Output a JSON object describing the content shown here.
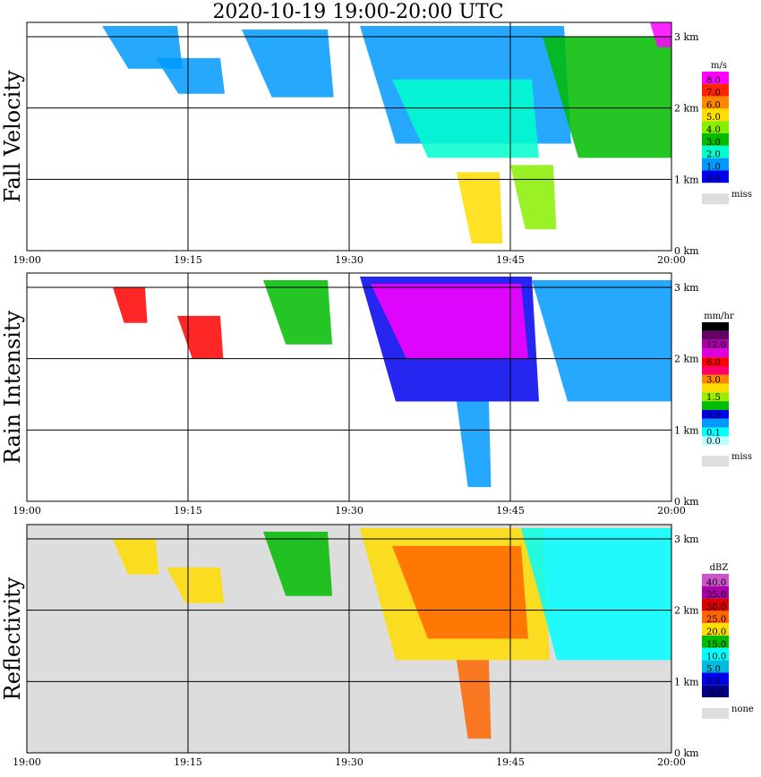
{
  "title": "2020-10-19   19:00-20:00 UTC",
  "chart_data": [
    {
      "type": "heatmap",
      "panel_label": "Fall Velocity",
      "x_ticks": [
        "19:00",
        "19:15",
        "19:30",
        "19:45",
        "20:00"
      ],
      "y_ticks": [
        "0 km",
        "1 km",
        "2 km",
        "3 km"
      ],
      "xlim": [
        "19:00",
        "20:00"
      ],
      "ylim": [
        0,
        3.2
      ],
      "grid": true,
      "legend_unit": "m/s",
      "legend_placement": "right",
      "legend_levels": [
        "8.0",
        "7.0",
        "6.0",
        "5.0",
        "4.0",
        "3.0",
        "2.0",
        "1.0",
        "0.0"
      ],
      "legend_colors": [
        "#ff00ff",
        "#ff2200",
        "#ff8800",
        "#ffdd00",
        "#88ee00",
        "#00bb00",
        "#00ffcc",
        "#0099ff",
        "#0000ee"
      ],
      "missing_label": "miss",
      "missing_color": "#dddddd",
      "background": "#ffffff",
      "features": [
        {
          "t0": 7,
          "t1": 14,
          "top": 3.15,
          "bottom": 2.55,
          "color": "#0099ff"
        },
        {
          "t0": 12,
          "t1": 18,
          "top": 2.7,
          "bottom": 2.2,
          "color": "#0099ff"
        },
        {
          "t0": 20,
          "t1": 28,
          "top": 3.1,
          "bottom": 2.15,
          "color": "#0099ff"
        },
        {
          "t0": 31,
          "t1": 50,
          "top": 3.15,
          "bottom": 1.5,
          "color": "#0099ff"
        },
        {
          "t0": 34,
          "t1": 47,
          "top": 2.4,
          "bottom": 1.3,
          "color": "#00ffcc"
        },
        {
          "t0": 40,
          "t1": 44,
          "top": 1.1,
          "bottom": 0.1,
          "color": "#ffdd00"
        },
        {
          "t0": 45,
          "t1": 49,
          "top": 1.2,
          "bottom": 0.3,
          "color": "#88ee00"
        },
        {
          "t0": 48,
          "t1": 60,
          "top": 3.0,
          "bottom": 1.3,
          "color": "#00bb00"
        },
        {
          "t0": 58,
          "t1": 60,
          "top": 3.2,
          "bottom": 2.85,
          "color": "#ff00ff"
        }
      ]
    },
    {
      "type": "heatmap",
      "panel_label": "Rain Intensity",
      "x_ticks": [
        "19:00",
        "19:15",
        "19:30",
        "19:45",
        "20:00"
      ],
      "y_ticks": [
        "0 km",
        "1 km",
        "2 km",
        "3 km"
      ],
      "xlim": [
        "19:00",
        "20:00"
      ],
      "ylim": [
        0,
        3.2
      ],
      "grid": true,
      "legend_unit": "mm/hr",
      "legend_placement": "right",
      "legend_levels": [
        "48.0",
        "",
        "12.0",
        "",
        "6.0",
        "",
        "3.0",
        "",
        "1.5",
        "",
        "0.5",
        "",
        "0.1",
        "0.0"
      ],
      "legend_colors": [
        "#000000",
        "#660066",
        "#aa00aa",
        "#dd00dd",
        "#ff0000",
        "#ff0066",
        "#ff8800",
        "#ffdd00",
        "#99ee00",
        "#00bb00",
        "#0000ee",
        "#0099ff",
        "#00ffff",
        "#bbffff"
      ],
      "missing_label": "miss",
      "missing_color": "#dddddd",
      "background": "#ffffff",
      "features": [
        {
          "t0": 8,
          "t1": 11,
          "top": 3.0,
          "bottom": 2.5,
          "color": "#ff0000"
        },
        {
          "t0": 14,
          "t1": 18,
          "top": 2.6,
          "bottom": 2.0,
          "color": "#ff0000"
        },
        {
          "t0": 22,
          "t1": 28,
          "top": 3.1,
          "bottom": 2.2,
          "color": "#00bb00"
        },
        {
          "t0": 31,
          "t1": 47,
          "top": 3.15,
          "bottom": 1.4,
          "color": "#0000ee"
        },
        {
          "t0": 32,
          "t1": 46,
          "top": 3.05,
          "bottom": 2.0,
          "color": "#ff00ff"
        },
        {
          "t0": 40,
          "t1": 43,
          "top": 1.4,
          "bottom": 0.2,
          "color": "#0099ff"
        },
        {
          "t0": 47,
          "t1": 60,
          "top": 3.1,
          "bottom": 1.4,
          "color": "#0099ff"
        }
      ]
    },
    {
      "type": "heatmap",
      "panel_label": "Reflectivity",
      "x_ticks": [
        "19:00",
        "19:15",
        "19:30",
        "19:45",
        "20:00"
      ],
      "y_ticks": [
        "0 km",
        "1 km",
        "2 km",
        "3 km"
      ],
      "xlim": [
        "19:00",
        "20:00"
      ],
      "ylim": [
        0,
        3.2
      ],
      "grid": true,
      "legend_unit": "dBZ",
      "legend_placement": "right",
      "legend_levels": [
        "40.0",
        "35.0",
        "30.0",
        "25.0",
        "20.0",
        "15.0",
        "10.0",
        "5.0",
        "0.0",
        "-5.0"
      ],
      "legend_colors": [
        "#cc55cc",
        "#aa00aa",
        "#dd0000",
        "#ff6600",
        "#ffdd00",
        "#00bb00",
        "#00ffff",
        "#00bbdd",
        "#0000ee",
        "#000088"
      ],
      "missing_label": "none",
      "missing_color": "#dddddd",
      "background": "#dddddd",
      "features": [
        {
          "t0": 8,
          "t1": 12,
          "top": 3.0,
          "bottom": 2.5,
          "color": "#ffdd00"
        },
        {
          "t0": 13,
          "t1": 18,
          "top": 2.6,
          "bottom": 2.1,
          "color": "#ffdd00"
        },
        {
          "t0": 22,
          "t1": 28,
          "top": 3.1,
          "bottom": 2.2,
          "color": "#00bb00"
        },
        {
          "t0": 31,
          "t1": 48,
          "top": 3.15,
          "bottom": 1.3,
          "color": "#ffdd00"
        },
        {
          "t0": 34,
          "t1": 46,
          "top": 2.9,
          "bottom": 1.6,
          "color": "#ff6600"
        },
        {
          "t0": 40,
          "t1": 43,
          "top": 1.3,
          "bottom": 0.2,
          "color": "#ff6600"
        },
        {
          "t0": 46,
          "t1": 60,
          "top": 3.15,
          "bottom": 1.3,
          "color": "#00ffff"
        }
      ]
    }
  ]
}
